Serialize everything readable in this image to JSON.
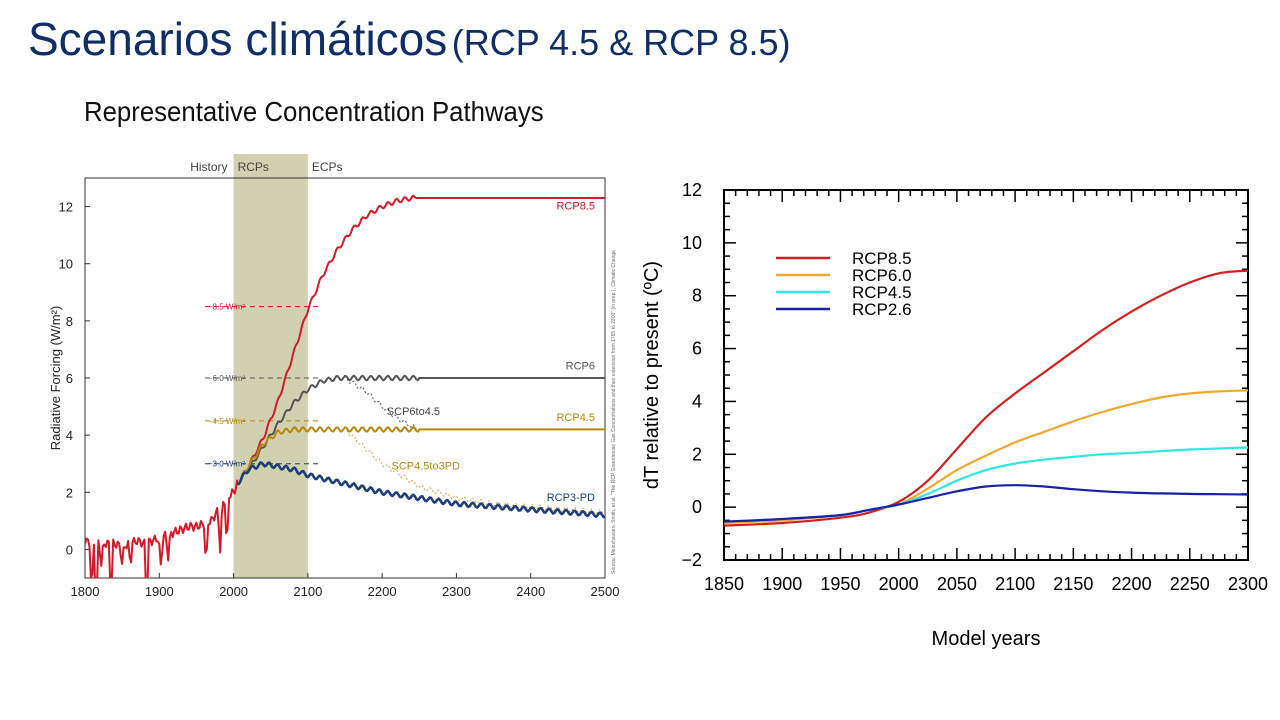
{
  "slide": {
    "title_main": "Scenarios climáticos",
    "title_sub": "(RCP 4.5 & RCP 8.5)",
    "subtitle": "Representative Concentration Pathways"
  },
  "chart_data": [
    {
      "type": "line",
      "title": "",
      "xlabel": "",
      "ylabel": "Radiative Forcing (W/m²)",
      "xlim": [
        1800,
        2500
      ],
      "ylim": [
        -1,
        13
      ],
      "x_ticks": [
        1800,
        1900,
        2000,
        2100,
        2200,
        2300,
        2400,
        2500
      ],
      "y_ticks": [
        0,
        2,
        4,
        6,
        8,
        10,
        12
      ],
      "period_labels": [
        "History",
        "RCPs",
        "ECPs"
      ],
      "rcp_band": [
        2000,
        2100
      ],
      "reference_levels": [
        {
          "label": "~8.5 W/m²",
          "value": 8.5,
          "color": "#c8102e"
        },
        {
          "label": "~6.0 W/m²",
          "value": 6.0,
          "color": "#555555"
        },
        {
          "label": "~4.5 W/m²",
          "value": 4.5,
          "color": "#b8860b"
        },
        {
          "label": "~3.0 W/m²",
          "value": 3.0,
          "color": "#1f3f7a"
        }
      ],
      "source_note": "Source: Meinshausen, Smith, et al. \"The RCP Greenhouse Gas Concentrations and their extension from 1765 to 2300\" (in prep.), Climatic Change",
      "series": [
        {
          "name": "History",
          "color": "#d11a2a",
          "x": [
            1800,
            1810,
            1820,
            1830,
            1840,
            1850,
            1860,
            1870,
            1880,
            1890,
            1900,
            1910,
            1920,
            1930,
            1940,
            1950,
            1960,
            1970,
            1980,
            1990,
            2000,
            2005
          ],
          "y": [
            0.3,
            0.2,
            0.25,
            0.2,
            0.2,
            0.1,
            0.2,
            0.3,
            0.2,
            0.3,
            0.4,
            0.5,
            0.6,
            0.7,
            0.8,
            0.8,
            0.9,
            1.0,
            1.4,
            1.8,
            2.0,
            2.3
          ]
        },
        {
          "name": "RCP8.5",
          "color": "#d11a2a",
          "x": [
            2005,
            2020,
            2040,
            2060,
            2080,
            2100,
            2120,
            2140,
            2160,
            2180,
            2200,
            2220,
            2240,
            2250,
            2500
          ],
          "y": [
            2.3,
            2.9,
            3.9,
            5.2,
            6.8,
            8.4,
            9.6,
            10.5,
            11.2,
            11.7,
            12.0,
            12.2,
            12.3,
            12.3,
            12.3
          ]
        },
        {
          "name": "RCP6",
          "color": "#555555",
          "x": [
            2005,
            2020,
            2040,
            2060,
            2080,
            2100,
            2120,
            2140,
            2150,
            2500
          ],
          "y": [
            2.3,
            2.8,
            3.6,
            4.4,
            5.1,
            5.6,
            5.9,
            6.0,
            6.0,
            6.0
          ]
        },
        {
          "name": "SCP6to4.5",
          "color": "#555555",
          "x": [
            2150,
            2180,
            2200,
            2220,
            2240,
            2250
          ],
          "y": [
            6.0,
            5.5,
            5.0,
            4.6,
            4.3,
            4.2
          ]
        },
        {
          "name": "RCP4.5",
          "color": "#b8860b",
          "x": [
            2005,
            2020,
            2040,
            2060,
            2080,
            2100,
            2150,
            2500
          ],
          "y": [
            2.3,
            2.9,
            3.7,
            4.1,
            4.2,
            4.2,
            4.2,
            4.2
          ]
        },
        {
          "name": "SCP4.5to3PD",
          "color": "#d4a545",
          "x": [
            2150,
            2200,
            2250,
            2300,
            2350,
            2400,
            2450,
            2500
          ],
          "y": [
            4.2,
            3.0,
            2.2,
            1.8,
            1.6,
            1.5,
            1.4,
            1.3
          ]
        },
        {
          "name": "RCP3-PD",
          "color": "#1f3f7a",
          "x": [
            2005,
            2020,
            2040,
            2060,
            2080,
            2100,
            2150,
            2200,
            2250,
            2300,
            2350,
            2400,
            2450,
            2500
          ],
          "y": [
            2.3,
            2.8,
            3.0,
            2.9,
            2.8,
            2.6,
            2.3,
            2.0,
            1.8,
            1.6,
            1.5,
            1.4,
            1.3,
            1.2
          ]
        }
      ]
    },
    {
      "type": "line",
      "title": "",
      "xlabel": "Model years",
      "ylabel": "dT relative to present (ºC)",
      "xlim": [
        1850,
        2300
      ],
      "ylim": [
        -2,
        12
      ],
      "x_ticks": [
        1850,
        1900,
        1950,
        2000,
        2050,
        2100,
        2150,
        2200,
        2250,
        2300
      ],
      "y_ticks": [
        -2,
        0,
        2,
        4,
        6,
        8,
        10,
        12
      ],
      "legend_position": "top-left",
      "series": [
        {
          "name": "RCP8.5",
          "color": "#d02020",
          "x": [
            1850,
            1900,
            1950,
            1975,
            2000,
            2025,
            2050,
            2075,
            2100,
            2125,
            2150,
            2175,
            2200,
            2225,
            2250,
            2275,
            2300
          ],
          "y": [
            -0.7,
            -0.6,
            -0.4,
            -0.2,
            0.2,
            1.0,
            2.2,
            3.4,
            4.3,
            5.1,
            5.9,
            6.7,
            7.4,
            8.0,
            8.5,
            8.85,
            8.95
          ]
        },
        {
          "name": "RCP6.0",
          "color": "#f0a830",
          "x": [
            1850,
            1900,
            1950,
            1975,
            2000,
            2025,
            2050,
            2075,
            2100,
            2125,
            2150,
            2175,
            2200,
            2225,
            2250,
            2275,
            2300
          ],
          "y": [
            -0.6,
            -0.5,
            -0.3,
            -0.1,
            0.1,
            0.7,
            1.4,
            1.95,
            2.45,
            2.85,
            3.25,
            3.6,
            3.9,
            4.15,
            4.3,
            4.38,
            4.42
          ]
        },
        {
          "name": "RCP4.5",
          "color": "#30e8e0",
          "x": [
            1850,
            1900,
            1950,
            1975,
            2000,
            2025,
            2050,
            2075,
            2100,
            2125,
            2150,
            2175,
            2200,
            2225,
            2250,
            2275,
            2300
          ],
          "y": [
            -0.55,
            -0.45,
            -0.3,
            -0.1,
            0.1,
            0.5,
            1.0,
            1.4,
            1.65,
            1.8,
            1.9,
            2.0,
            2.05,
            2.12,
            2.18,
            2.22,
            2.26
          ]
        },
        {
          "name": "RCP2.6",
          "color": "#1a20a8",
          "x": [
            1850,
            1900,
            1950,
            1975,
            2000,
            2025,
            2050,
            2075,
            2100,
            2125,
            2150,
            2175,
            2200,
            2225,
            2250,
            2275,
            2300
          ],
          "y": [
            -0.55,
            -0.45,
            -0.3,
            -0.1,
            0.1,
            0.35,
            0.6,
            0.78,
            0.83,
            0.78,
            0.68,
            0.6,
            0.55,
            0.52,
            0.5,
            0.49,
            0.48
          ]
        }
      ]
    }
  ]
}
